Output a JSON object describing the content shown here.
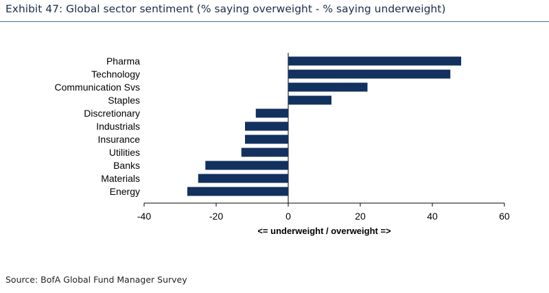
{
  "header": {
    "title": "Exhibit 47: Global sector sentiment (% saying overweight - % saying underweight)"
  },
  "footer": {
    "source": "Source: BofA Global Fund Manager Survey"
  },
  "chart_data": {
    "type": "bar",
    "orientation": "horizontal",
    "categories": [
      "Pharma",
      "Technology",
      "Communication Svs",
      "Staples",
      "Discretionary",
      "Industrials",
      "Insurance",
      "Utilities",
      "Banks",
      "Materials",
      "Energy"
    ],
    "values": [
      48,
      45,
      22,
      12,
      -9,
      -12,
      -12,
      -13,
      -23,
      -25,
      -28
    ],
    "title": "",
    "xlabel": "<= underweight / overweight =>",
    "ylabel": "",
    "xlim": [
      -40,
      60
    ],
    "xticks": [
      -40,
      -20,
      0,
      20,
      40,
      60
    ],
    "grid": false,
    "bar_color": "#12315e"
  }
}
